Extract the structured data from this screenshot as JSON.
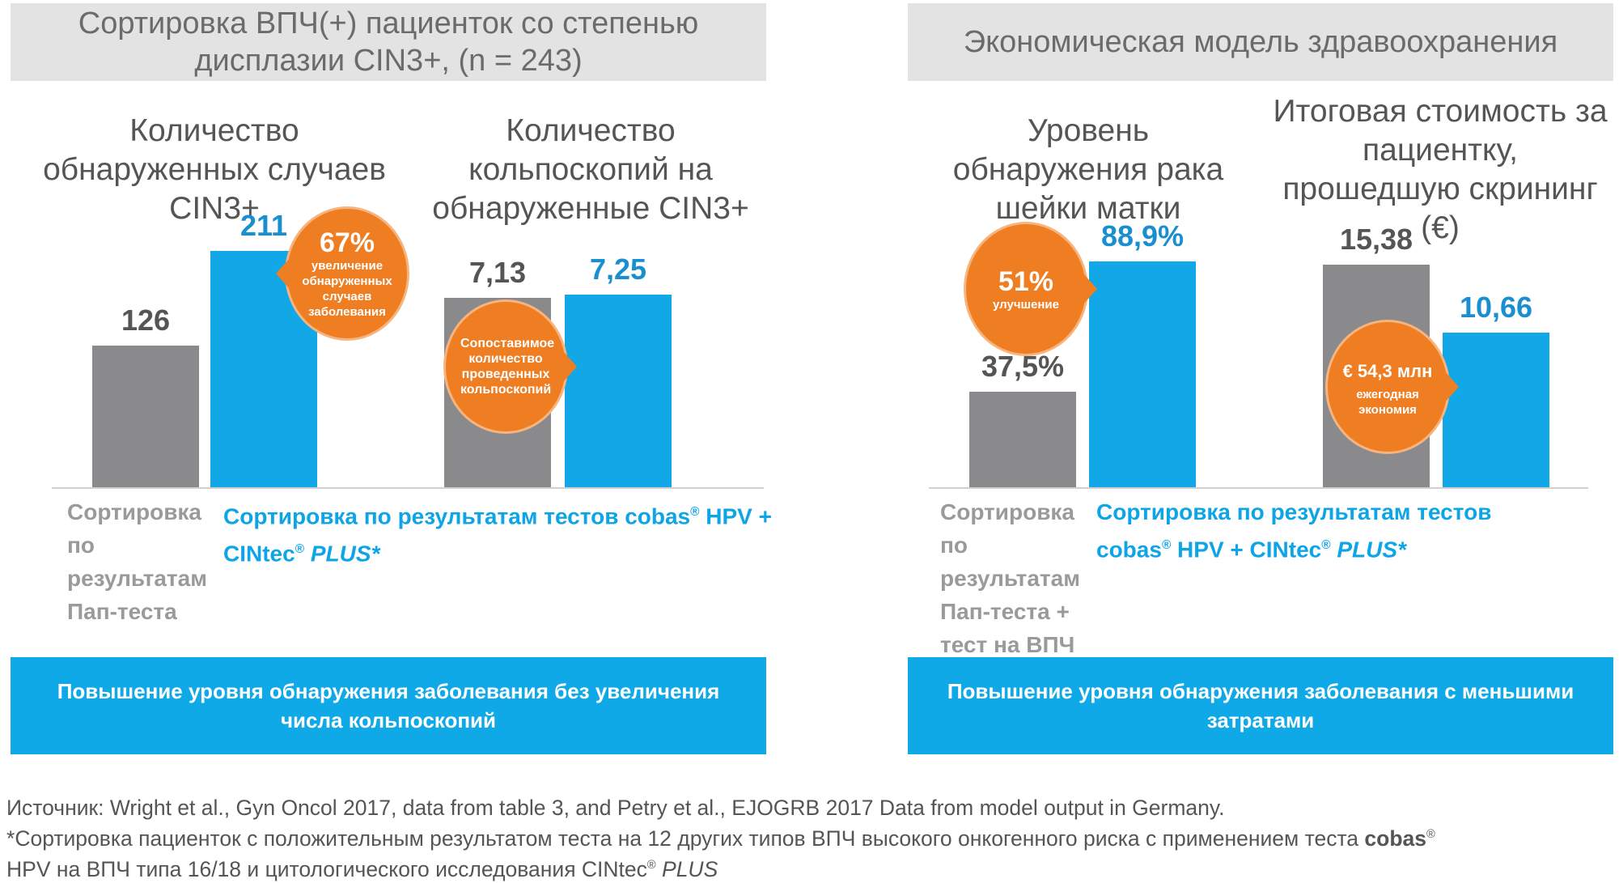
{
  "left_panel": {
    "header": "Сортировка ВПЧ(+) пациенток со степенью дисплазии CIN3+, (n = 243)",
    "footer_box": "Повышение уровня обнаружения заболевания без увеличения числа кольпоскопий",
    "label_gray": "Сортировка по результатам Пап-теста",
    "label_blue_1": "Сортировка по результатам тестов cobas",
    "label_blue_2": " HPV + CINtec",
    "label_blue_3": "PLUS*"
  },
  "right_panel": {
    "header": "Экономическая модель здравоохранения",
    "footer_box": "Повышение уровня обнаружения заболевания с меньшими затратами",
    "label_gray": "Сортировка по результатам Пап-теста + тест на ВПЧ",
    "label_blue_1": "Сортировка по результатам тестов cobas",
    "label_blue_2": " HPV + CINtec",
    "label_blue_3": "PLUS*"
  },
  "reg": "®",
  "colors": {
    "gray_bar": "#8a8a8c",
    "blue_bar": "#12a8e8",
    "bubble": "#ef7d22",
    "value_gray": "#555555",
    "value_blue": "#1a8fd0"
  },
  "chart_data": [
    {
      "type": "bar",
      "title": "Количество обнаруженных случаев CIN3+",
      "categories": [
        "Пап-тест",
        "cobas HPV + CINtec PLUS"
      ],
      "values": [
        126,
        211
      ],
      "value_labels": [
        "126",
        "211"
      ],
      "ylim": [
        0,
        231
      ],
      "callout": {
        "big": "67%",
        "small": "увеличение обнаруженных случаев заболевания"
      }
    },
    {
      "type": "bar",
      "title": "Количество кольпоскопий на обнаруженные CIN3+",
      "categories": [
        "Пап-тест",
        "cobas HPV + CINtec PLUS"
      ],
      "values": [
        7.13,
        7.25
      ],
      "value_labels": [
        "7,13",
        "7,25"
      ],
      "ylim": [
        0,
        9.75
      ],
      "callout": {
        "big": "",
        "small": "Сопоставимое количество проведенных кольпоскопий"
      }
    },
    {
      "type": "bar",
      "title": "Уровень обнаружения рака шейки матки",
      "categories": [
        "Пап-тест + ВПЧ",
        "cobas HPV + CINtec PLUS"
      ],
      "values": [
        37.5,
        88.9
      ],
      "value_labels": [
        "37,5%",
        "88,9%"
      ],
      "ylim": [
        0,
        102
      ],
      "callout": {
        "big": "51%",
        "small": "улучшение"
      }
    },
    {
      "type": "bar",
      "title": "Итоговая стоимость за пациентку, прошедшую скрининг (€)",
      "categories": [
        "Пап-тест + ВПЧ",
        "cobas HPV + CINtec PLUS"
      ],
      "values": [
        15.38,
        10.66
      ],
      "value_labels": [
        "15,38",
        "10,66"
      ],
      "ylim": [
        0,
        17.9
      ],
      "callout": {
        "big": "€ 54,3 млн",
        "small": "ежегодная экономия"
      }
    }
  ],
  "footer": {
    "line1": "Источник: Wright et al., Gyn Oncol 2017, data from table 3, and Petry et al., EJOGRB 2017 Data from model output in Germany.",
    "line2a": "*Сортировка пациенток с положительным результатом теста на 12 других типов ВПЧ высокого онкогенного риска с применением теста ",
    "line2b": "cobas",
    "line3a": "HPV на ВПЧ типа 16/18 и цитологического исследования CINtec",
    "line3b": "PLUS"
  }
}
